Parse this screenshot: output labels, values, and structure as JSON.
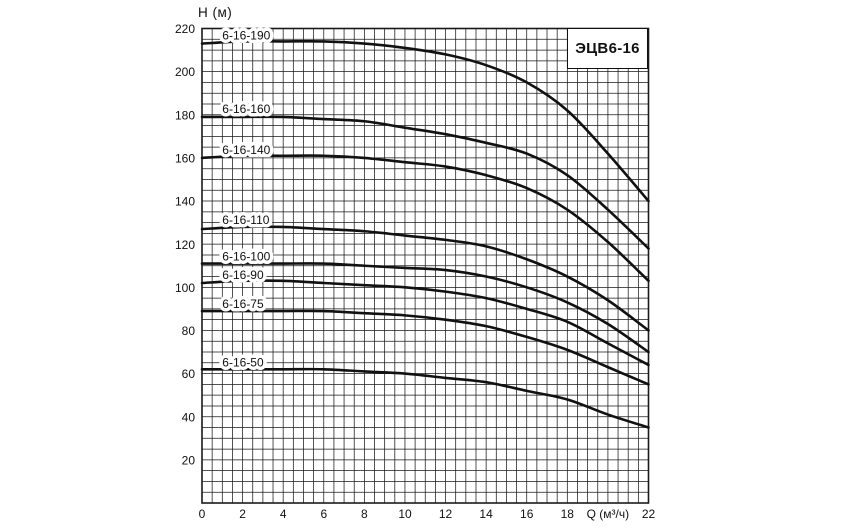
{
  "title": "ЭЦВ6-16",
  "chart_data": {
    "type": "line",
    "title": "ЭЦВ6-16",
    "xlabel": "Q (м³/ч)",
    "ylabel": "H (м)",
    "xlim": [
      0,
      22
    ],
    "ylim": [
      0,
      220
    ],
    "x_major_tick": 2,
    "y_major_tick": 20,
    "x_minor_grid": 0.5,
    "y_minor_grid": 5,
    "grid": true,
    "legend_position": "inline-labels",
    "x_tick_labels": [
      "0",
      "2",
      "4",
      "6",
      "8",
      "10",
      "12",
      "14",
      "16",
      "18",
      "Q (м³/ч)",
      "22"
    ],
    "y_tick_labels": [
      "20",
      "40",
      "60",
      "80",
      "100",
      "120",
      "140",
      "160",
      "180",
      "200",
      "220"
    ],
    "x": [
      0,
      2,
      4,
      6,
      8,
      10,
      12,
      14,
      16,
      18,
      20,
      22
    ],
    "series": [
      {
        "name": "6-16-190",
        "values": [
          213,
          214,
          214,
          214,
          213,
          211,
          208,
          203,
          195,
          182,
          162,
          140
        ],
        "label_pos": {
          "q": 1.0,
          "h": 217.0
        }
      },
      {
        "name": "6-16-160",
        "values": [
          179,
          179,
          179,
          178,
          177,
          174,
          171,
          167,
          162,
          152,
          136,
          118
        ],
        "label_pos": {
          "q": 1.0,
          "h": 183.0
        }
      },
      {
        "name": "6-16-140",
        "values": [
          160,
          161,
          161,
          161,
          160,
          158,
          156,
          152,
          146,
          136,
          121,
          103
        ],
        "label_pos": {
          "q": 1.0,
          "h": 164.0
        }
      },
      {
        "name": "6-16-110",
        "values": [
          127,
          128,
          128,
          127,
          126,
          124,
          122,
          119,
          113,
          105,
          94,
          80
        ],
        "label_pos": {
          "q": 1.0,
          "h": 131.5
        }
      },
      {
        "name": "6-16-100",
        "values": [
          111,
          111,
          111,
          111,
          110,
          109,
          108,
          105,
          100,
          93,
          83,
          70
        ],
        "label_pos": {
          "q": 1.0,
          "h": 114.5
        }
      },
      {
        "name": "6-16-90",
        "values": [
          102,
          103,
          103,
          102,
          101,
          100,
          98,
          95,
          90,
          84,
          74,
          64
        ],
        "label_pos": {
          "q": 1.0,
          "h": 106.0
        }
      },
      {
        "name": "6-16-75",
        "values": [
          89,
          89,
          89,
          89,
          88,
          87,
          85,
          82,
          77,
          71,
          63,
          55
        ],
        "label_pos": {
          "q": 1.0,
          "h": 92.5
        }
      },
      {
        "name": "6-16-50",
        "values": [
          62,
          62,
          62,
          62,
          61,
          60,
          58,
          56,
          52,
          48,
          41,
          35
        ],
        "label_pos": {
          "q": 1.0,
          "h": 65.5
        }
      }
    ],
    "curve_color": "#111111",
    "grid_color": "#1a1a1a",
    "text_color": "#111111",
    "background": "#ffffff"
  }
}
